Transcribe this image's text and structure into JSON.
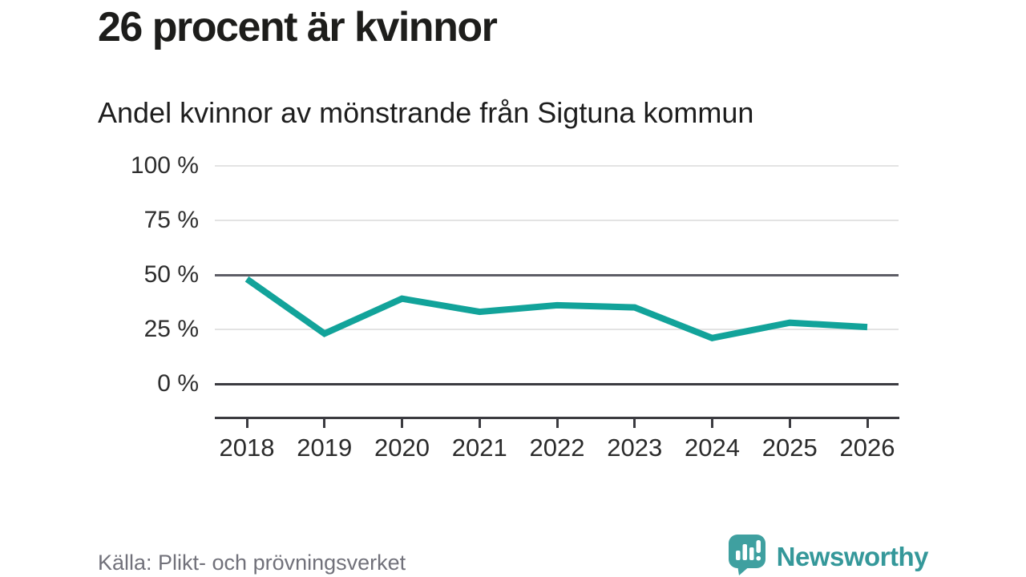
{
  "header": {
    "title": "26 procent är kvinnor",
    "subtitle": "Andel kvinnor av mönstrande från Sigtuna kommun"
  },
  "chart_data": {
    "type": "line",
    "title": "26 procent är kvinnor",
    "subtitle": "Andel kvinnor av mönstrande från Sigtuna kommun",
    "categories": [
      "2018",
      "2019",
      "2020",
      "2021",
      "2022",
      "2023",
      "2024",
      "2025",
      "2026"
    ],
    "series": [
      {
        "name": "Andel kvinnor av mönstrande",
        "values": [
          48,
          23,
          39,
          33,
          36,
          35,
          21,
          28,
          26
        ]
      }
    ],
    "unit": "%",
    "ylim": [
      0,
      100
    ],
    "yticks": [
      {
        "value": 100,
        "label": "100 %"
      },
      {
        "value": 75,
        "label": "75 %"
      },
      {
        "value": 50,
        "label": "50 %"
      },
      {
        "value": 25,
        "label": "25 %"
      },
      {
        "value": 0,
        "label": "0 %"
      }
    ],
    "grid": "horizontal",
    "legend": "none",
    "line_color": "#12a39a",
    "emphasized_gridlines": [
      50,
      0
    ]
  },
  "footer": {
    "source": "Källa: Plikt- och prövningsverket",
    "logo_text": "Newsworthy"
  },
  "colors": {
    "accent_teal": "#12a39a",
    "logo_teal": "#3fa0a0",
    "logo_text_teal": "#35989a",
    "axis_dark": "#3b3b40",
    "grid_light": "#e3e3e3",
    "grid_mid": "#5d5d66",
    "text_dark": "#1d1d1b",
    "source_gray": "#71717a"
  }
}
